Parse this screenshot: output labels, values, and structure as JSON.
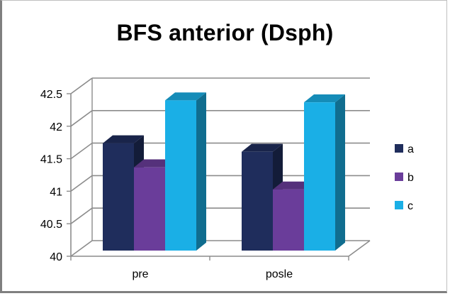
{
  "chart_data": {
    "type": "bar",
    "title": "BFS anterior (Dsph)",
    "categories": [
      "pre",
      "posle"
    ],
    "series": [
      {
        "name": "a",
        "values": [
          41.65,
          41.52
        ]
      },
      {
        "name": "b",
        "values": [
          41.28,
          40.94
        ]
      },
      {
        "name": "c",
        "values": [
          42.31,
          42.28
        ]
      }
    ],
    "ylim": [
      40,
      42.5
    ],
    "yticks": [
      "40",
      "40.5",
      "41",
      "41.5",
      "42",
      "42.5"
    ],
    "grid": true,
    "legend_position": "right",
    "colors": {
      "a": "#1f2d5c",
      "b": "#6a3d9a",
      "c": "#1aafe6"
    }
  }
}
